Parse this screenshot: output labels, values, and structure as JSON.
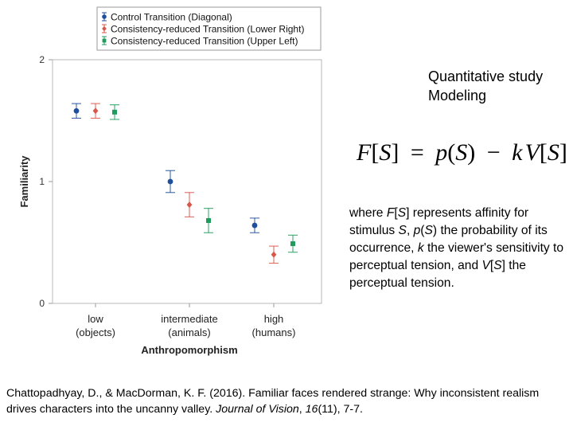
{
  "side_text": {
    "line1": "Quantitative study",
    "line2": "Modeling"
  },
  "formula": {
    "lhs_fn": "F",
    "lhs_arg": "S",
    "equals": "=",
    "p": "p",
    "p_arg": "S",
    "minus": "−",
    "k": "k",
    "v": "V",
    "v_arg": "S"
  },
  "description": {
    "t1": "where ",
    "f": "F",
    "lb1": "[",
    "s1": "S",
    "rb1": "]",
    "t2": " represents affinity for stimulus ",
    "s2": "S",
    "t3": ", ",
    "p": "p",
    "lp": "(",
    "s3": "S",
    "rp": ")",
    "t4": " the probability of its occurrence, ",
    "k": "k",
    "t5": " the viewer's sensitivity to perceptual tension, and ",
    "v": "V",
    "lb2": "[",
    "s4": "S",
    "rb2": "]",
    "t6": " the perceptual tension."
  },
  "citation": {
    "authors": "Chattopadhyay, D., & MacDorman, K. F. (2016). Familiar faces rendered strange: Why inconsistent realism drives characters into the uncanny valley. ",
    "journal": "Journal of Vision",
    "sep1": ", ",
    "volume": "16",
    "issue_pages": "(11), 7-7."
  },
  "chart_data": {
    "type": "scatter",
    "title": "",
    "xlabel": "Anthropomorphism",
    "ylabel": "Familiarity",
    "ylim": [
      0,
      2
    ],
    "yticks": [
      "0",
      "1",
      "2"
    ],
    "categories": [
      {
        "line1": "low",
        "line2": "(objects)"
      },
      {
        "line1": "intermediate",
        "line2": "(animals)"
      },
      {
        "line1": "high",
        "line2": "(humans)"
      }
    ],
    "legend_position": "top-left, above plot",
    "series": [
      {
        "name": "Control Transition (Diagonal)",
        "color": "#1f4e9c",
        "marker": "circle",
        "values": [
          1.58,
          1.0,
          0.64
        ],
        "err": [
          0.06,
          0.09,
          0.06
        ]
      },
      {
        "name": "Consistency-reduced Transition (Lower Right)",
        "color": "#d9574a",
        "marker": "diamond",
        "values": [
          1.58,
          0.81,
          0.4
        ],
        "err": [
          0.06,
          0.1,
          0.07
        ]
      },
      {
        "name": "Consistency-reduced Transition (Upper Left)",
        "color": "#1f9b5e",
        "marker": "square",
        "values": [
          1.57,
          0.68,
          0.49
        ],
        "err": [
          0.06,
          0.1,
          0.07
        ]
      }
    ]
  }
}
